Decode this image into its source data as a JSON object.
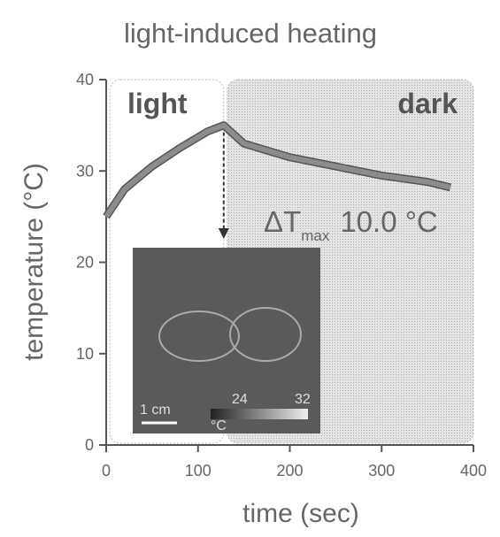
{
  "chart_data": {
    "type": "line",
    "title": "light-induced heating",
    "xlabel": "time (sec)",
    "ylabel": "temperature (°C)",
    "x": [
      0,
      20,
      50,
      80,
      110,
      128,
      150,
      200,
      250,
      300,
      350,
      375
    ],
    "values": [
      25,
      28,
      30.5,
      32.5,
      34.3,
      35,
      33,
      31.5,
      30.5,
      29.5,
      28.8,
      28.2
    ],
    "color": "#8c8c8c",
    "xlim": [
      0,
      400
    ],
    "ylim": [
      0,
      40
    ],
    "xticks": [
      0,
      100,
      200,
      300,
      400
    ],
    "yticks": [
      0,
      10,
      20,
      30,
      40
    ],
    "regions": [
      {
        "label": "light",
        "xlim": [
          0,
          128
        ],
        "color": "#ffffff"
      },
      {
        "label": "dark",
        "xlim": [
          128,
          400
        ],
        "color": "#dcdcdc"
      }
    ],
    "annotation": {
      "delta": "ΔT",
      "subscript": "max",
      "value": "10.0 °C"
    },
    "inset": {
      "scale_label": "1 cm",
      "unit": "°C",
      "colorbar_ticks": [
        24,
        32
      ]
    }
  }
}
